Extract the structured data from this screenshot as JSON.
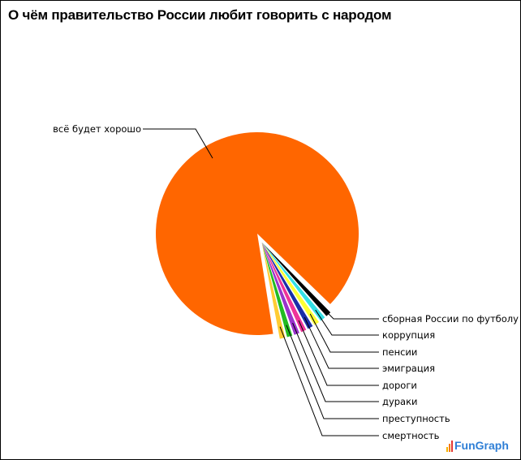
{
  "chart_data": {
    "type": "pie",
    "title": "О чём правительство России любит говорить с народом",
    "slices": [
      {
        "label": "всё будет хорошо",
        "value": 92,
        "color": "#ff6600"
      },
      {
        "label": "сборная России по футболу",
        "value": 1,
        "color": "#000000"
      },
      {
        "label": "коррупция",
        "value": 1,
        "color": "#33e0e6"
      },
      {
        "label": "пенсии",
        "value": 1,
        "color": "#ffff33"
      },
      {
        "label": "эмиграция",
        "value": 1,
        "color": "#1a2ea8"
      },
      {
        "label": "дороги",
        "value": 1,
        "color": "#ee3399"
      },
      {
        "label": "дураки",
        "value": 1,
        "color": "#9933cc"
      },
      {
        "label": "преступность",
        "value": 1,
        "color": "#22bb22"
      },
      {
        "label": "смертность",
        "value": 1,
        "color": "#ffcc33"
      }
    ],
    "legend_position": "labels with leader lines"
  },
  "branding": {
    "logo_text": "FunGraph"
  }
}
